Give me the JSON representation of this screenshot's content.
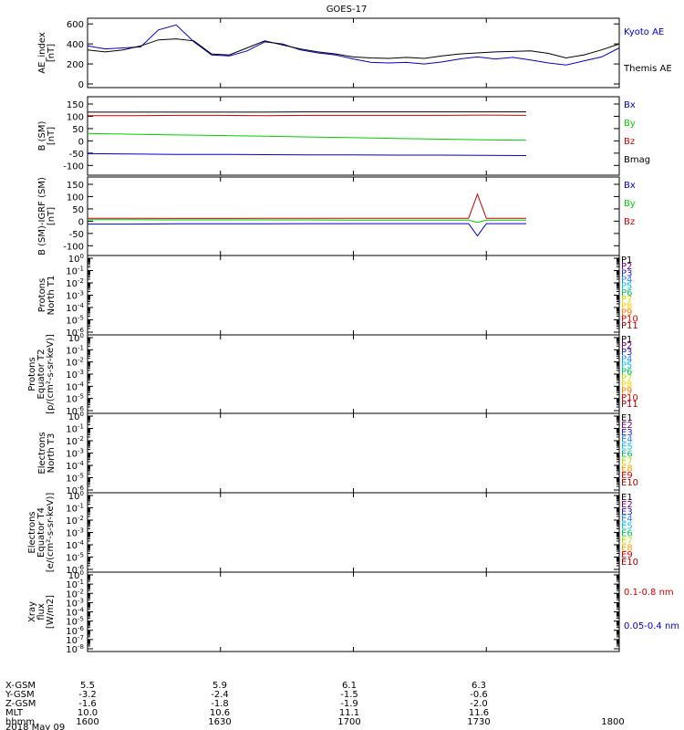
{
  "title": "GOES-17",
  "chart_data": [
    {
      "type": "line",
      "ylabel": "AE_index [nT]",
      "ylim": [
        0,
        620
      ],
      "yticks": [
        "0",
        "200",
        "400",
        "600"
      ],
      "x": [
        "1600",
        "1604",
        "1608",
        "1612",
        "1616",
        "1620",
        "1624",
        "1628",
        "1632",
        "1636",
        "1640",
        "1644",
        "1648",
        "1652",
        "1656",
        "1700",
        "1704",
        "1708",
        "1712",
        "1716",
        "1720",
        "1724",
        "1728",
        "1732",
        "1736",
        "1740",
        "1744",
        "1748",
        "1752",
        "1756",
        "1800"
      ],
      "series": [
        {
          "name": "Kyoto AE",
          "color": "#0000cc",
          "values": [
            380,
            350,
            360,
            370,
            540,
            590,
            420,
            290,
            280,
            330,
            420,
            400,
            340,
            310,
            290,
            250,
            215,
            210,
            215,
            200,
            220,
            250,
            270,
            250,
            265,
            240,
            210,
            190,
            230,
            270,
            360
          ]
        },
        {
          "name": "Themis AE",
          "color": "#000000",
          "values": [
            340,
            320,
            340,
            380,
            440,
            450,
            430,
            300,
            290,
            360,
            430,
            390,
            350,
            320,
            300,
            270,
            260,
            255,
            265,
            255,
            280,
            300,
            310,
            320,
            325,
            330,
            305,
            260,
            290,
            340,
            400
          ]
        }
      ]
    },
    {
      "type": "line",
      "ylabel": "B (SM) [nT]",
      "ylim": [
        -110,
        150
      ],
      "yticks": [
        "-100",
        "-50",
        "0",
        "50",
        "100",
        "150"
      ],
      "x": [
        "1600",
        "1610",
        "1620",
        "1630",
        "1640",
        "1650",
        "1700",
        "1710",
        "1720",
        "1730",
        "1739"
      ],
      "series": [
        {
          "name": "Bx",
          "color": "#0000cc",
          "values": [
            -52,
            -53,
            -55,
            -55,
            -56,
            -57,
            -57,
            -58,
            -58,
            -59,
            -60
          ]
        },
        {
          "name": "By",
          "color": "#00cc00",
          "values": [
            30,
            27,
            24,
            22,
            19,
            16,
            13,
            10,
            7,
            4,
            2
          ]
        },
        {
          "name": "Bz",
          "color": "#cc0000",
          "values": [
            103,
            103,
            104,
            104,
            103,
            104,
            104,
            104,
            104,
            105,
            104
          ]
        },
        {
          "name": "Bmag",
          "color": "#000000",
          "values": [
            117,
            117,
            117,
            117,
            117,
            118,
            118,
            118,
            118,
            118,
            118
          ]
        }
      ]
    },
    {
      "type": "line",
      "ylabel": "B (SM)-IGRF (SM) [nT]",
      "ylim": [
        -110,
        150
      ],
      "yticks": [
        "-100",
        "-50",
        "0",
        "50",
        "100",
        "150"
      ],
      "x": [
        "1600",
        "1610",
        "1620",
        "1630",
        "1640",
        "1650",
        "1700",
        "1710",
        "1720",
        "1726",
        "1728",
        "1730",
        "1732",
        "1739"
      ],
      "series": [
        {
          "name": "Bx",
          "color": "#0000cc",
          "values": [
            -12,
            -12,
            -11,
            -11,
            -11,
            -10,
            -10,
            -10,
            -10,
            -10,
            -60,
            -10,
            -10,
            -10
          ]
        },
        {
          "name": "By",
          "color": "#00cc00",
          "values": [
            6,
            6,
            5,
            5,
            5,
            5,
            4,
            4,
            4,
            4,
            -5,
            4,
            4,
            4
          ]
        },
        {
          "name": "Bz",
          "color": "#cc0000",
          "values": [
            12,
            12,
            11,
            11,
            12,
            12,
            12,
            12,
            12,
            12,
            110,
            12,
            12,
            12
          ]
        }
      ]
    },
    {
      "type": "line",
      "ylabel": "Protons North T1",
      "ylim": [
        "10^-6",
        "10^0"
      ],
      "yticks": [
        "10^0",
        "10^-1",
        "10^-2",
        "10^-3",
        "10^-4",
        "10^-5",
        "10^-6"
      ],
      "series": [
        {
          "name": "P1",
          "color": "#000000",
          "values": []
        },
        {
          "name": "P2",
          "color": "#6a0080",
          "values": []
        },
        {
          "name": "P3",
          "color": "#2020c0",
          "values": []
        },
        {
          "name": "P4",
          "color": "#2080ff",
          "values": []
        },
        {
          "name": "P5",
          "color": "#00c0e0",
          "values": []
        },
        {
          "name": "P6",
          "color": "#00c060",
          "values": []
        },
        {
          "name": "P7",
          "color": "#c0e000",
          "values": []
        },
        {
          "name": "P8",
          "color": "#ffd000",
          "values": []
        },
        {
          "name": "P9",
          "color": "#ff8000",
          "values": []
        },
        {
          "name": "P10",
          "color": "#e00000",
          "values": []
        },
        {
          "name": "P11",
          "color": "#a00000",
          "values": []
        }
      ]
    },
    {
      "type": "line",
      "ylabel": "Protons Equator T2 [p/(cm²-s-sr-keV)]",
      "ylim": [
        "10^-6",
        "10^0"
      ],
      "yticks": [
        "10^0",
        "10^-1",
        "10^-2",
        "10^-3",
        "10^-4",
        "10^-5",
        "10^-6"
      ],
      "series": [
        {
          "name": "P1",
          "color": "#000000",
          "values": []
        },
        {
          "name": "P2",
          "color": "#6a0080",
          "values": []
        },
        {
          "name": "P3",
          "color": "#2020c0",
          "values": []
        },
        {
          "name": "P4",
          "color": "#2080ff",
          "values": []
        },
        {
          "name": "P5",
          "color": "#00c0e0",
          "values": []
        },
        {
          "name": "P6",
          "color": "#00c060",
          "values": []
        },
        {
          "name": "P7",
          "color": "#c0e000",
          "values": []
        },
        {
          "name": "P8",
          "color": "#ffd000",
          "values": []
        },
        {
          "name": "P9",
          "color": "#ff8000",
          "values": []
        },
        {
          "name": "P10",
          "color": "#e00000",
          "values": []
        },
        {
          "name": "P11",
          "color": "#a00000",
          "values": []
        }
      ]
    },
    {
      "type": "line",
      "ylabel": "Electrons North T3",
      "ylim": [
        "10^-6",
        "10^0"
      ],
      "yticks": [
        "10^0",
        "10^-1",
        "10^-2",
        "10^-3",
        "10^-4",
        "10^-5",
        "10^-6"
      ],
      "series": [
        {
          "name": "E1",
          "color": "#000000",
          "values": []
        },
        {
          "name": "E2",
          "color": "#6a0080",
          "values": []
        },
        {
          "name": "E3",
          "color": "#2020c0",
          "values": []
        },
        {
          "name": "E4",
          "color": "#2080ff",
          "values": []
        },
        {
          "name": "E5",
          "color": "#00c0e0",
          "values": []
        },
        {
          "name": "E6",
          "color": "#00c060",
          "values": []
        },
        {
          "name": "E7",
          "color": "#c0e000",
          "values": []
        },
        {
          "name": "E8",
          "color": "#ffa000",
          "values": []
        },
        {
          "name": "E9",
          "color": "#e00000",
          "values": []
        },
        {
          "name": "E10",
          "color": "#a00000",
          "values": []
        }
      ]
    },
    {
      "type": "line",
      "ylabel": "Electrons Equator T4 [e/(cm²-s-sr-keV)]",
      "ylim": [
        "10^-6",
        "10^0"
      ],
      "yticks": [
        "10^0",
        "10^-1",
        "10^-2",
        "10^-3",
        "10^-4",
        "10^-5",
        "10^-6"
      ],
      "series": [
        {
          "name": "E1",
          "color": "#000000",
          "values": []
        },
        {
          "name": "E2",
          "color": "#6a0080",
          "values": []
        },
        {
          "name": "E3",
          "color": "#2020c0",
          "values": []
        },
        {
          "name": "E4",
          "color": "#2080ff",
          "values": []
        },
        {
          "name": "E5",
          "color": "#00c0e0",
          "values": []
        },
        {
          "name": "E6",
          "color": "#00c060",
          "values": []
        },
        {
          "name": "E7",
          "color": "#c0e000",
          "values": []
        },
        {
          "name": "E8",
          "color": "#ffa000",
          "values": []
        },
        {
          "name": "E9",
          "color": "#e00000",
          "values": []
        },
        {
          "name": "E10",
          "color": "#a00000",
          "values": []
        }
      ]
    },
    {
      "type": "line",
      "ylabel": "Xray flux [W/m2]",
      "ylim": [
        "10^-8",
        "10^0"
      ],
      "yticks": [
        "10^0",
        "10^-1",
        "10^-2",
        "10^-3",
        "10^-4",
        "10^-5",
        "10^-6",
        "10^-7",
        "10^-8"
      ],
      "series": [
        {
          "name": "0.1-0.8 nm",
          "color": "#cc0000",
          "values": []
        },
        {
          "name": "0.05-0.4 nm",
          "color": "#0000cc",
          "values": []
        }
      ]
    }
  ],
  "xaxis": {
    "rows": [
      {
        "label": "X-GSM",
        "values": [
          "5.5",
          "5.9",
          "6.1",
          "6.3",
          ""
        ]
      },
      {
        "label": "Y-GSM",
        "values": [
          "-3.2",
          "-2.4",
          "-1.5",
          "-0.6",
          ""
        ]
      },
      {
        "label": "Z-GSM",
        "values": [
          "-1.6",
          "-1.8",
          "-1.9",
          "-2.0",
          ""
        ]
      },
      {
        "label": "MLT",
        "values": [
          "10.0",
          "10.6",
          "11.1",
          "11.6",
          ""
        ]
      },
      {
        "label": "hhmm",
        "values": [
          "1600",
          "1630",
          "1700",
          "1730",
          "1800"
        ]
      }
    ],
    "date": "2018 May 09"
  }
}
